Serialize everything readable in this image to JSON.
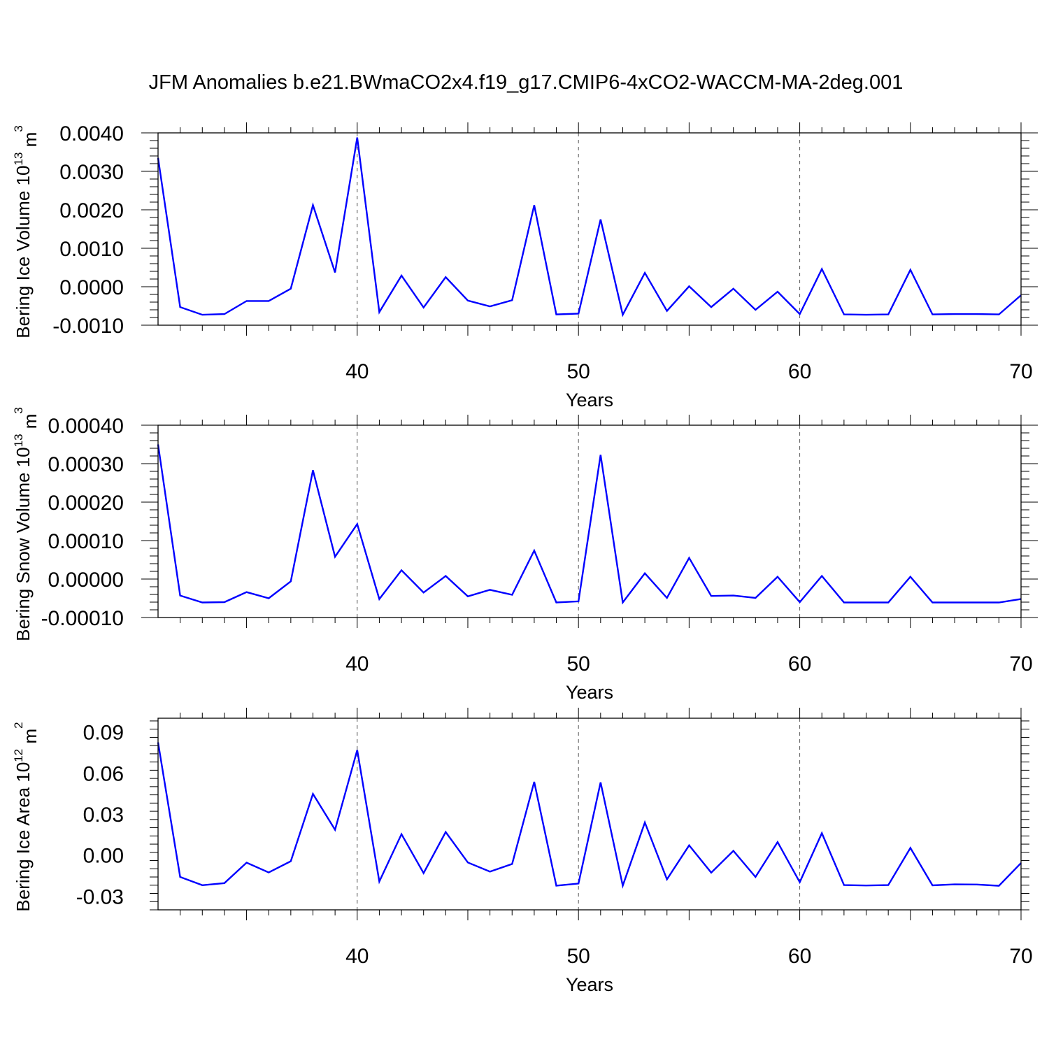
{
  "figure": {
    "title": "JFM Anomalies b.e21.BWmaCO2x4.f19_g17.CMIP6-4xCO2-WACCM-MA-2deg.001",
    "line_color": "#0000ff"
  },
  "chart_data": [
    {
      "type": "line",
      "ylabel_main": "Bering Ice Volume 10",
      "ylabel_exp1": "13",
      "ylabel_unit": " m",
      "ylabel_exp2": "3",
      "xlabel": "Years",
      "xlim": [
        31,
        70
      ],
      "ylim": [
        -0.001,
        0.004
      ],
      "yticks": [
        -0.001,
        0.0,
        0.001,
        0.002,
        0.003,
        0.004
      ],
      "ytick_labels": [
        "-0.0010",
        "0.0000",
        "0.0010",
        "0.0020",
        "0.0030",
        "0.0040"
      ],
      "xticks": [
        40,
        50,
        60,
        70
      ],
      "xtick_labels": [
        "40",
        "50",
        "60",
        "70"
      ],
      "grid_x": [
        40,
        50,
        60
      ],
      "x": [
        31,
        32,
        33,
        34,
        35,
        36,
        37,
        38,
        39,
        40,
        41,
        42,
        43,
        44,
        45,
        46,
        47,
        48,
        49,
        50,
        51,
        52,
        53,
        54,
        55,
        56,
        57,
        58,
        59,
        60,
        61,
        62,
        63,
        64,
        65,
        66,
        67,
        68,
        69,
        70
      ],
      "series": [
        {
          "name": "Bering Ice Volume",
          "values": [
            0.00335,
            -0.00053,
            -0.00073,
            -0.00071,
            -0.00037,
            -0.00037,
            -5e-05,
            0.00212,
            0.00037,
            0.00388,
            -0.00066,
            0.00029,
            -0.00054,
            0.00025,
            -0.00036,
            -0.00051,
            -0.00035,
            0.00212,
            -0.00072,
            -0.0007,
            0.00175,
            -0.00073,
            0.00036,
            -0.00063,
            1e-05,
            -0.00053,
            -5e-05,
            -0.0006,
            -0.00013,
            -0.00071,
            0.00046,
            -0.00072,
            -0.00073,
            -0.00072,
            0.00044,
            -0.00072,
            -0.00071,
            -0.00071,
            -0.00072,
            -0.00022
          ]
        }
      ]
    },
    {
      "type": "line",
      "ylabel_main": "Bering Snow Volume 10",
      "ylabel_exp1": "13",
      "ylabel_unit": " m",
      "ylabel_exp2": "3",
      "xlabel": "Years",
      "xlim": [
        31,
        70
      ],
      "ylim": [
        -0.0001,
        0.0004
      ],
      "yticks": [
        -0.0001,
        0.0,
        0.0001,
        0.0002,
        0.0003,
        0.0004
      ],
      "ytick_labels": [
        "-0.00010",
        "0.00000",
        "0.00010",
        "0.00020",
        "0.00030",
        "0.00040"
      ],
      "xticks": [
        40,
        50,
        60,
        70
      ],
      "xtick_labels": [
        "40",
        "50",
        "60",
        "70"
      ],
      "grid_x": [
        40,
        50,
        60
      ],
      "x": [
        31,
        32,
        33,
        34,
        35,
        36,
        37,
        38,
        39,
        40,
        41,
        42,
        43,
        44,
        45,
        46,
        47,
        48,
        49,
        50,
        51,
        52,
        53,
        54,
        55,
        56,
        57,
        58,
        59,
        60,
        61,
        62,
        63,
        64,
        65,
        66,
        67,
        68,
        69,
        70
      ],
      "series": [
        {
          "name": "Bering Snow Volume",
          "values": [
            0.00035,
            -4.3e-05,
            -6.1e-05,
            -6e-05,
            -3.4e-05,
            -5e-05,
            -6e-06,
            0.000283,
            5.8e-05,
            0.000143,
            -5.2e-05,
            2.3e-05,
            -3.5e-05,
            8e-06,
            -4.5e-05,
            -2.8e-05,
            -4.1e-05,
            7.4e-05,
            -6.1e-05,
            -5.8e-05,
            0.000323,
            -6.1e-05,
            1.5e-05,
            -4.9e-05,
            5.5e-05,
            -4.4e-05,
            -4.3e-05,
            -4.9e-05,
            6e-06,
            -6e-05,
            8e-06,
            -6.1e-05,
            -6.1e-05,
            -6.1e-05,
            6e-06,
            -6.1e-05,
            -6.1e-05,
            -6.1e-05,
            -6.1e-05,
            -5.2e-05
          ]
        }
      ]
    },
    {
      "type": "line",
      "ylabel_main": "Bering Ice Area 10",
      "ylabel_exp1": "12",
      "ylabel_unit": " m",
      "ylabel_exp2": "2",
      "xlabel": "Years",
      "xlim": [
        31,
        70
      ],
      "ylim": [
        -0.04,
        0.1
      ],
      "yticks": [
        -0.03,
        0.0,
        0.03,
        0.06,
        0.09
      ],
      "ytick_labels": [
        "-0.03",
        "0.00",
        "0.03",
        "0.06",
        "0.09"
      ],
      "xticks": [
        40,
        50,
        60,
        70
      ],
      "xtick_labels": [
        "40",
        "50",
        "60",
        "70"
      ],
      "grid_x": [
        40,
        50,
        60
      ],
      "x": [
        31,
        32,
        33,
        34,
        35,
        36,
        37,
        38,
        39,
        40,
        41,
        42,
        43,
        44,
        45,
        46,
        47,
        48,
        49,
        50,
        51,
        52,
        53,
        54,
        55,
        56,
        57,
        58,
        59,
        60,
        61,
        62,
        63,
        64,
        65,
        66,
        67,
        68,
        69,
        70
      ],
      "series": [
        {
          "name": "Bering Ice Area",
          "values": [
            0.0823,
            -0.016,
            -0.022,
            -0.0205,
            -0.0055,
            -0.0127,
            -0.0045,
            0.0447,
            0.0185,
            0.0767,
            -0.0193,
            0.0153,
            -0.0132,
            0.0168,
            -0.0054,
            -0.0121,
            -0.0065,
            0.0535,
            -0.0223,
            -0.0208,
            0.0531,
            -0.0223,
            0.0238,
            -0.0177,
            0.0071,
            -0.0128,
            0.0031,
            -0.016,
            0.0095,
            -0.0198,
            0.016,
            -0.0219,
            -0.0222,
            -0.0219,
            0.0052,
            -0.0221,
            -0.0214,
            -0.0215,
            -0.0224,
            -0.0058
          ]
        }
      ]
    }
  ]
}
